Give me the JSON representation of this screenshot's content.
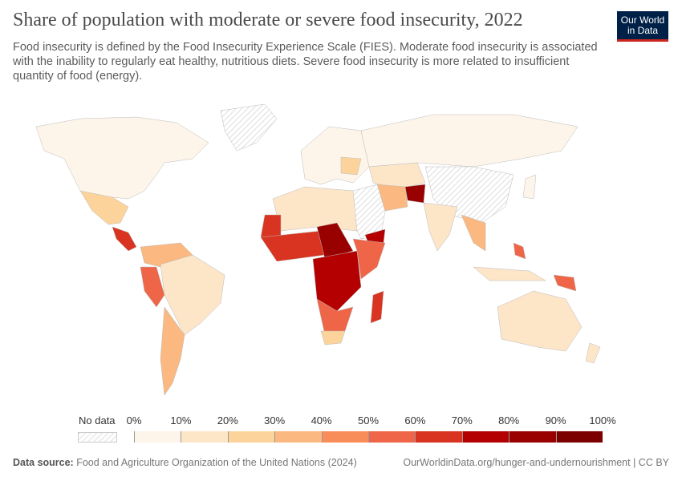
{
  "header": {
    "title": "Share of population with moderate or severe food insecurity, 2022",
    "subtitle": "Food insecurity is defined by the Food Insecurity Experience Scale (FIES). Moderate food insecurity is associated with the inability to regularly eat healthy, nutritious diets. Severe food insecurity is more related to insufficient quantity of food (energy).",
    "logo": "Our World in Data"
  },
  "legend": {
    "no_data": "No data",
    "ticks": [
      "0%",
      "10%",
      "20%",
      "30%",
      "40%",
      "50%",
      "60%",
      "70%",
      "80%",
      "90%",
      "100%"
    ],
    "colors": [
      "#fef5ea",
      "#fde5c8",
      "#fcd49b",
      "#fbb880",
      "#f98d5a",
      "#ee6548",
      "#d93421",
      "#b40000",
      "#990000",
      "#7d0000"
    ],
    "no_data_color": "#e8e8e8"
  },
  "footer": {
    "source_label": "Data source:",
    "source": "Food and Agriculture Organization of the United Nations (2024)",
    "url": "OurWorldinData.org/hunger-and-undernourishment | CC BY"
  }
}
